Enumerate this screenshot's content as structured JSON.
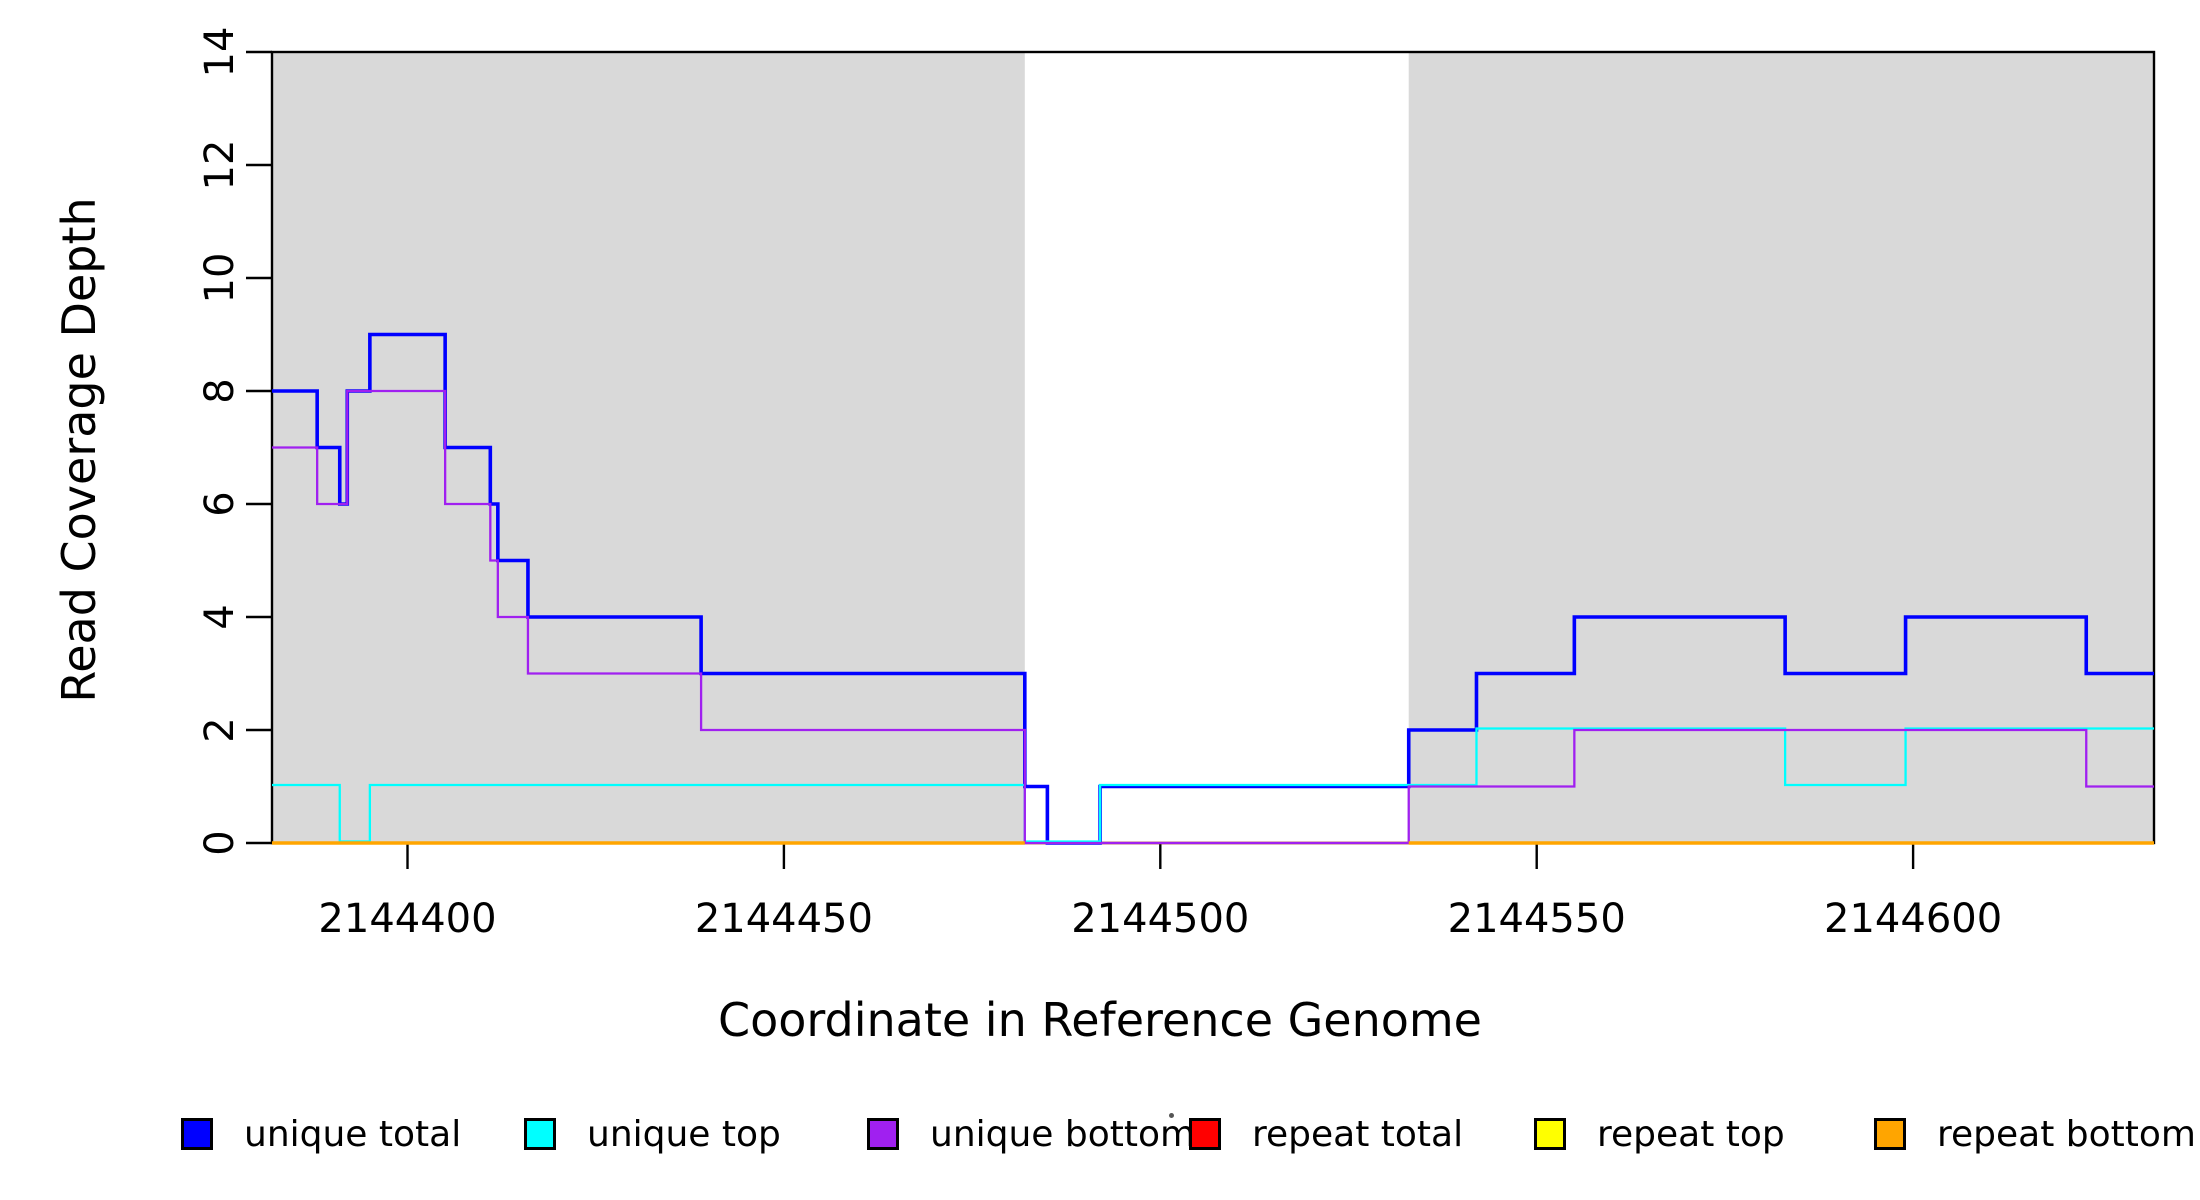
{
  "chart_data": {
    "type": "line",
    "subtype": "step-coverage",
    "title": "",
    "xlabel": "Coordinate in Reference Genome",
    "ylabel": "Read Coverage Depth",
    "x_range": [
      2144382,
      2144632
    ],
    "y_range": [
      0,
      14
    ],
    "x_ticks": [
      2144400,
      2144450,
      2144500,
      2144550,
      2144600
    ],
    "y_ticks": [
      0,
      2,
      4,
      6,
      8,
      10,
      12,
      14
    ],
    "grid": false,
    "legend_position": "bottom",
    "background_color": "#ffffff",
    "shaded_region_color": "#d9d9d9",
    "shaded_regions": [
      {
        "x0": 2144382,
        "x1": 2144482
      },
      {
        "x0": 2144533,
        "x1": 2144632
      }
    ],
    "series": [
      {
        "name": "unique total",
        "color": "#0000ff",
        "width": 3.6,
        "steps": [
          [
            2144382,
            8
          ],
          [
            2144388,
            7
          ],
          [
            2144391,
            6
          ],
          [
            2144392,
            8
          ],
          [
            2144395,
            9
          ],
          [
            2144405,
            7
          ],
          [
            2144411,
            6
          ],
          [
            2144412,
            5
          ],
          [
            2144416,
            4
          ],
          [
            2144439,
            3
          ],
          [
            2144482,
            1
          ],
          [
            2144485,
            0
          ],
          [
            2144492,
            1
          ],
          [
            2144533,
            2
          ],
          [
            2144542,
            3
          ],
          [
            2144555,
            4
          ],
          [
            2144583,
            3
          ],
          [
            2144599,
            4
          ],
          [
            2144623,
            3
          ]
        ]
      },
      {
        "name": "unique top",
        "color": "#00ffff",
        "width": 2.3,
        "steps": [
          [
            2144382,
            1
          ],
          [
            2144391,
            0
          ],
          [
            2144395,
            1
          ],
          [
            2144482,
            0
          ],
          [
            2144492,
            1
          ],
          [
            2144542,
            2
          ],
          [
            2144583,
            1
          ],
          [
            2144599,
            2
          ]
        ]
      },
      {
        "name": "unique bottom",
        "color": "#a020f0",
        "width": 2.3,
        "steps": [
          [
            2144382,
            7
          ],
          [
            2144388,
            6
          ],
          [
            2144392,
            8
          ],
          [
            2144405,
            6
          ],
          [
            2144411,
            5
          ],
          [
            2144412,
            4
          ],
          [
            2144416,
            3
          ],
          [
            2144439,
            2
          ],
          [
            2144482,
            0
          ],
          [
            2144533,
            1
          ],
          [
            2144555,
            2
          ],
          [
            2144623,
            1
          ]
        ]
      },
      {
        "name": "repeat total",
        "color": "#ff0000",
        "width": 2.3,
        "steps": [
          [
            2144382,
            0
          ]
        ]
      },
      {
        "name": "repeat top",
        "color": "#ffff00",
        "width": 2.3,
        "steps": [
          [
            2144382,
            0
          ]
        ]
      },
      {
        "name": "repeat bottom",
        "color": "#ffa500",
        "width": 3.6,
        "steps": [
          [
            2144382,
            0
          ]
        ],
        "draw_ranges": [
          [
            2144382,
            2144482
          ],
          [
            2144533,
            2144632
          ]
        ]
      }
    ],
    "draw_order": [
      "repeat top",
      "repeat total",
      "unique total",
      "unique top",
      "unique bottom",
      "repeat bottom"
    ]
  }
}
